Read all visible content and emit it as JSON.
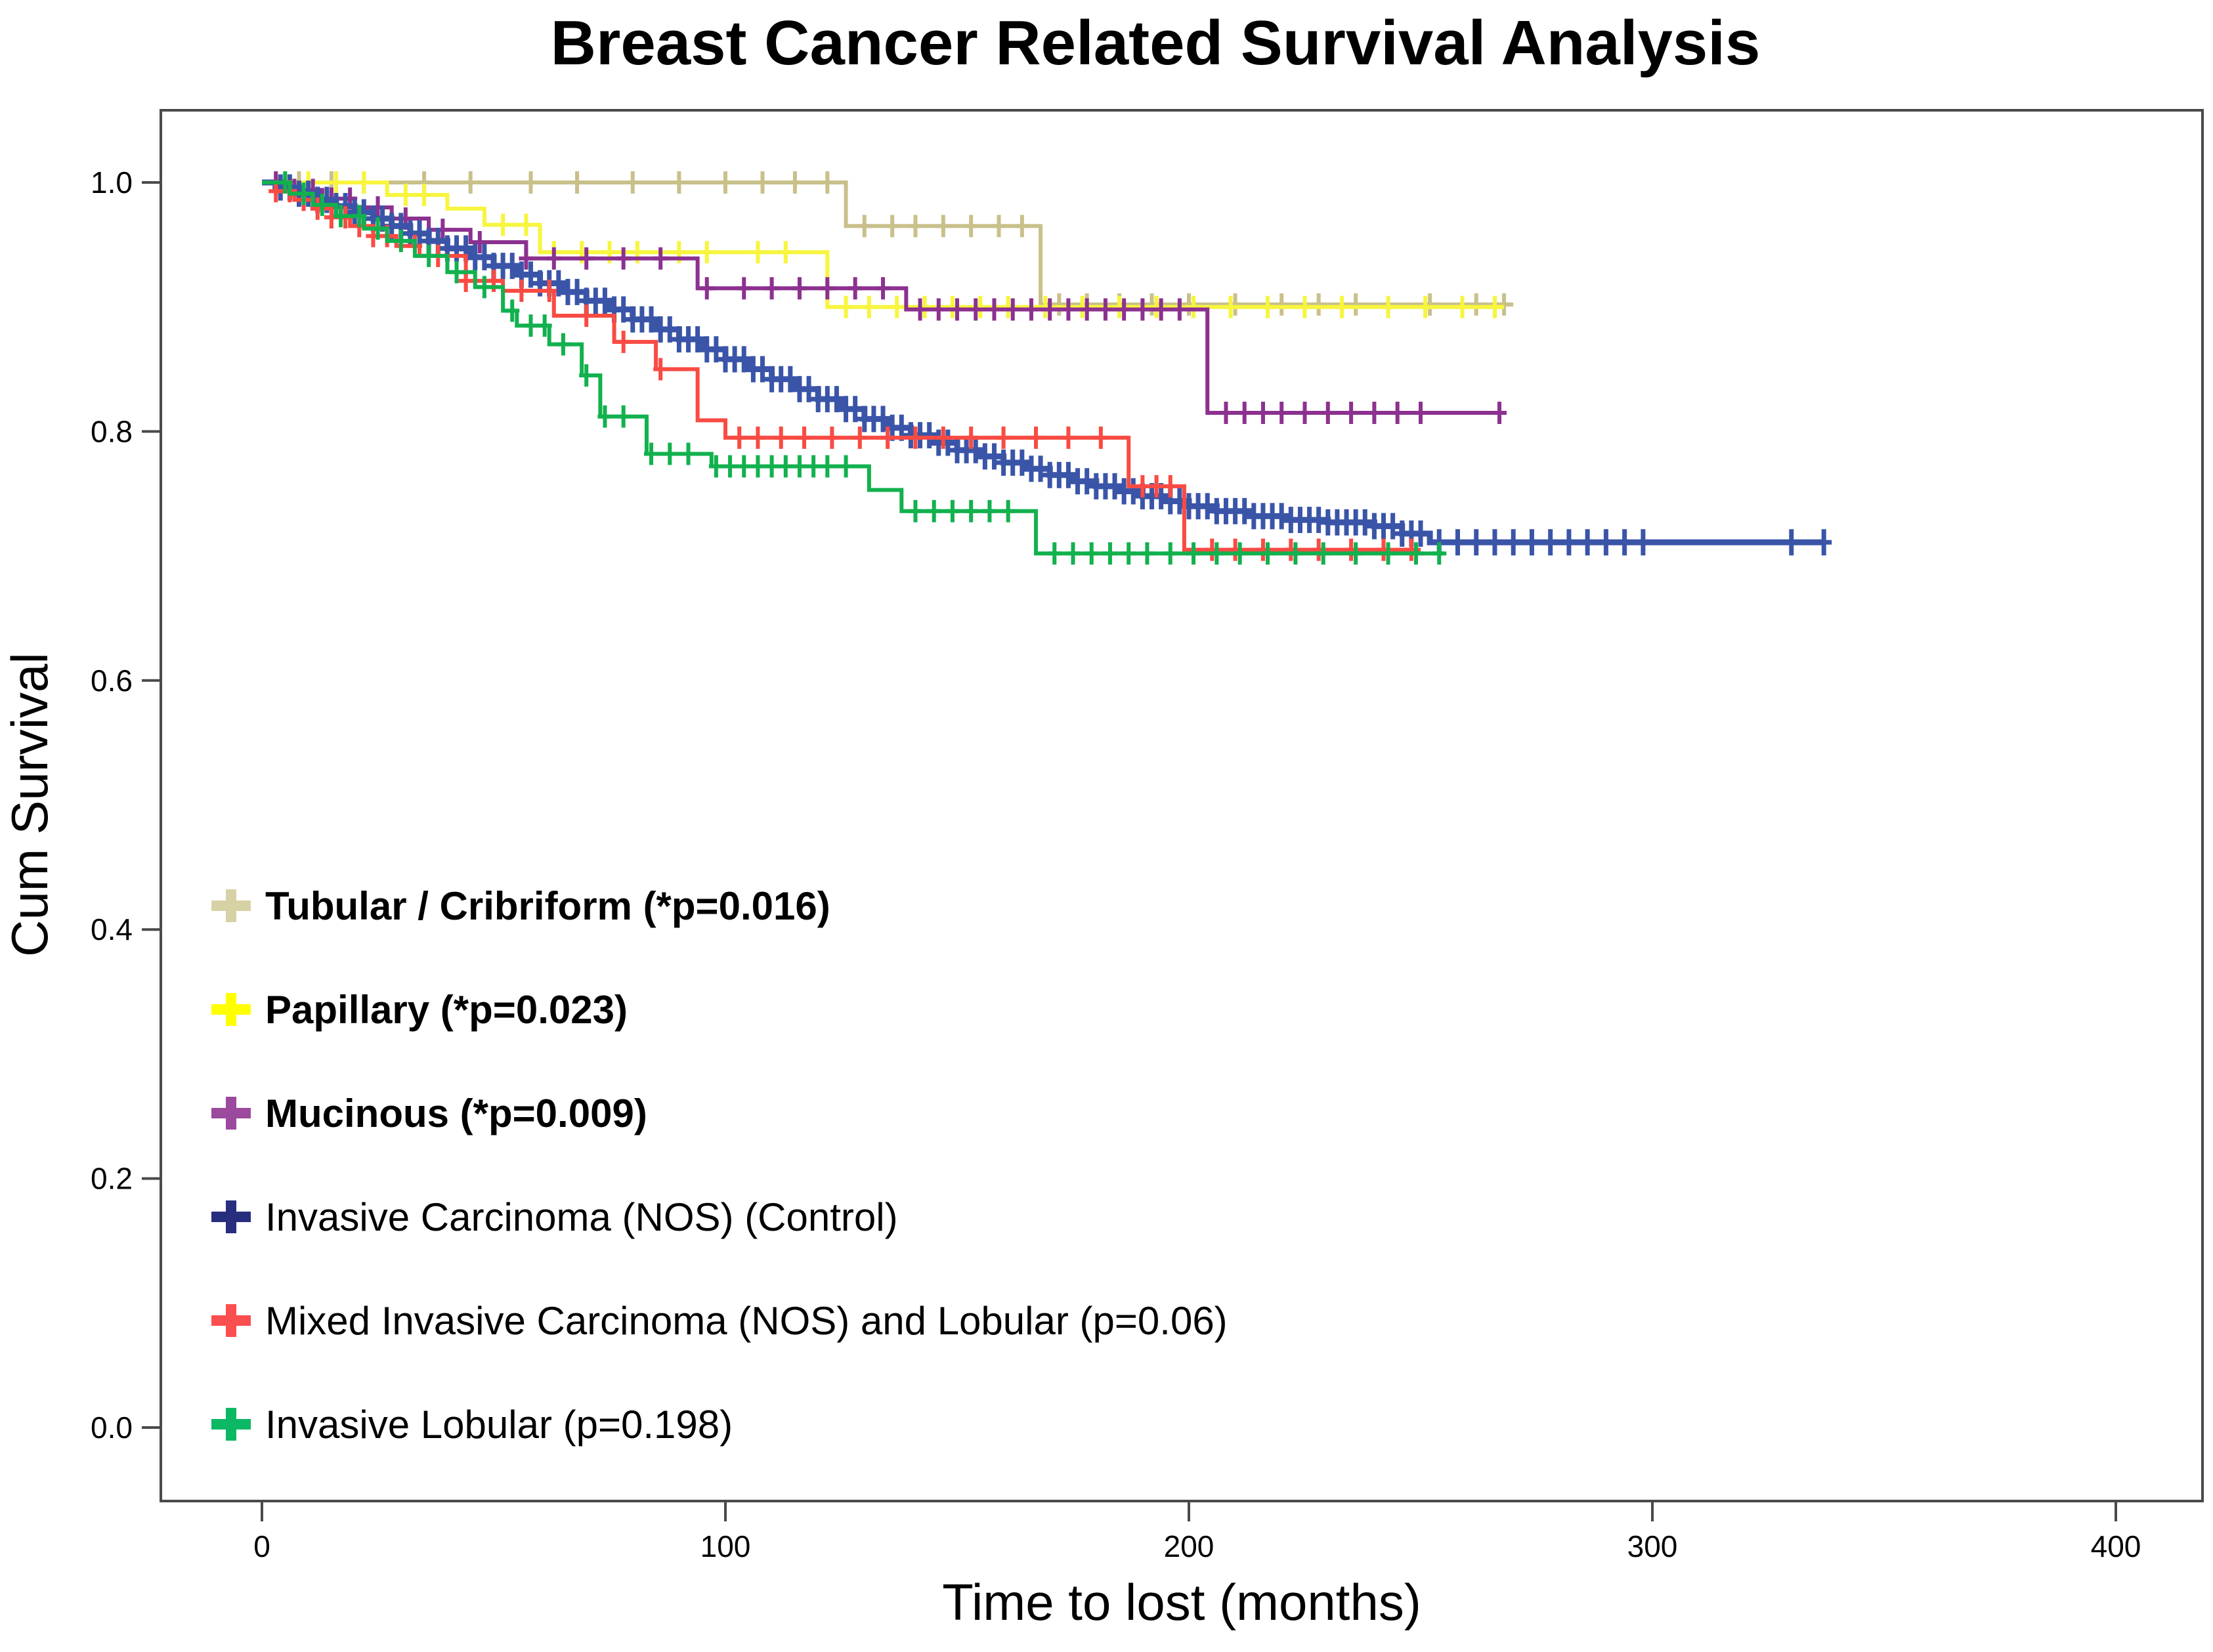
{
  "title": "Breast Cancer Related Survival Analysis",
  "axes": {
    "y": {
      "label": "Cum Survival",
      "ticks": [
        {
          "value": 1.0,
          "label": "1.0"
        },
        {
          "value": 0.8,
          "label": "0.8"
        },
        {
          "value": 0.6,
          "label": "0.6"
        },
        {
          "value": 0.4,
          "label": "0.4"
        },
        {
          "value": 0.2,
          "label": "0.2"
        },
        {
          "value": 0.0,
          "label": "0.0"
        }
      ]
    },
    "x": {
      "label": "Time to lost (months)",
      "ticks": [
        {
          "value": 0,
          "label": "0"
        },
        {
          "value": 100,
          "label": "100"
        },
        {
          "value": 200,
          "label": "200"
        },
        {
          "value": 300,
          "label": "300"
        },
        {
          "value": 400,
          "label": "400"
        }
      ]
    }
  },
  "chart_data": {
    "type": "line",
    "subtype": "kaplan-meier-step",
    "title": "Breast Cancer Related Survival Analysis",
    "xlabel": "Time to lost (months)",
    "ylabel": "Cum Survival",
    "xlim": [
      -21.8,
      418.7
    ],
    "ylim": [
      -0.059,
      1.058
    ],
    "grid": false,
    "legend_position": "inside-lower-left",
    "series": [
      {
        "id": "tubular_cribriform",
        "label": "Tubular / Cribriform (*p=0.016)",
        "p_value": "*p=0.016",
        "color": "#c9c08a",
        "marker_color": "#d7d1a6",
        "steps": [
          [
            0,
            1.0
          ],
          [
            126,
            0.965
          ],
          [
            168,
            0.902
          ]
        ],
        "end_time": 270,
        "censor_times": [
          8,
          15,
          22,
          35,
          45,
          58,
          68,
          80,
          90,
          100,
          108,
          115,
          122,
          130,
          136,
          141,
          147,
          153,
          159,
          164,
          172,
          178,
          185,
          192,
          200,
          210,
          220,
          228,
          236,
          252,
          262,
          268
        ]
      },
      {
        "id": "papillary",
        "label": "Papillary (*p=0.023)",
        "p_value": "*p=0.023",
        "color": "#f7f53e",
        "marker_color": "#ffff00",
        "steps": [
          [
            0,
            1.0
          ],
          [
            27,
            0.99
          ],
          [
            40,
            0.979
          ],
          [
            48,
            0.966
          ],
          [
            60,
            0.944
          ],
          [
            122,
            0.9
          ]
        ],
        "end_time": 268,
        "censor_times": [
          5,
          10,
          16,
          22,
          31,
          35,
          52,
          57,
          63,
          69,
          75,
          81,
          90,
          96,
          107,
          113,
          126,
          131,
          137,
          143,
          149,
          155,
          161,
          169,
          177,
          185,
          193,
          201,
          209,
          217,
          225,
          233,
          243,
          251,
          259,
          266
        ]
      },
      {
        "id": "mucinous",
        "label": "Mucinous (*p=0.009)",
        "p_value": "*p=0.009",
        "color": "#8c3190",
        "marker_color": "#9c4a9e",
        "steps": [
          [
            0,
            1.0
          ],
          [
            6,
            0.994
          ],
          [
            13,
            0.987
          ],
          [
            20,
            0.98
          ],
          [
            28,
            0.971
          ],
          [
            36,
            0.962
          ],
          [
            45,
            0.952
          ],
          [
            57,
            0.939
          ],
          [
            94,
            0.915
          ],
          [
            139,
            0.898
          ],
          [
            204,
            0.815
          ]
        ],
        "end_time": 267,
        "censor_times": [
          3,
          7,
          11,
          15,
          19,
          25,
          31,
          39,
          47,
          57,
          63,
          70,
          78,
          86,
          96,
          104,
          110,
          116,
          122,
          128,
          134,
          142,
          146,
          150,
          154,
          158,
          162,
          166,
          170,
          174,
          178,
          182,
          186,
          190,
          194,
          198,
          208,
          212,
          216,
          220,
          225,
          230,
          235,
          240,
          245,
          250,
          267
        ]
      },
      {
        "id": "invasive_carcinoma_nos_control",
        "label": "Invasive Carcinoma (NOS) (Control)",
        "p_value": null,
        "color": "#3a55a8",
        "marker_color": "#282e7e",
        "steps": [
          [
            0,
            1.0
          ],
          [
            4,
            0.996
          ],
          [
            8,
            0.991
          ],
          [
            12,
            0.986
          ],
          [
            16,
            0.981
          ],
          [
            20,
            0.976
          ],
          [
            24,
            0.971
          ],
          [
            28,
            0.965
          ],
          [
            32,
            0.959
          ],
          [
            36,
            0.953
          ],
          [
            40,
            0.947
          ],
          [
            45,
            0.94
          ],
          [
            50,
            0.933
          ],
          [
            55,
            0.926
          ],
          [
            60,
            0.919
          ],
          [
            65,
            0.912
          ],
          [
            70,
            0.905
          ],
          [
            75,
            0.898
          ],
          [
            80,
            0.89
          ],
          [
            85,
            0.882
          ],
          [
            90,
            0.874
          ],
          [
            95,
            0.866
          ],
          [
            100,
            0.858
          ],
          [
            105,
            0.85
          ],
          [
            110,
            0.842
          ],
          [
            115,
            0.834
          ],
          [
            120,
            0.826
          ],
          [
            125,
            0.818
          ],
          [
            130,
            0.81
          ],
          [
            135,
            0.803
          ],
          [
            140,
            0.797
          ],
          [
            145,
            0.791
          ],
          [
            150,
            0.785
          ],
          [
            155,
            0.78
          ],
          [
            160,
            0.775
          ],
          [
            165,
            0.77
          ],
          [
            170,
            0.765
          ],
          [
            175,
            0.76
          ],
          [
            180,
            0.756
          ],
          [
            185,
            0.752
          ],
          [
            190,
            0.748
          ],
          [
            195,
            0.744
          ],
          [
            200,
            0.74
          ],
          [
            206,
            0.736
          ],
          [
            213,
            0.732
          ],
          [
            221,
            0.729
          ],
          [
            230,
            0.727
          ],
          [
            240,
            0.724
          ],
          [
            246,
            0.718
          ],
          [
            252,
            0.711
          ]
        ],
        "end_time": 337,
        "censor_times": [
          4,
          6,
          8,
          10,
          12,
          14,
          16,
          18,
          20,
          22,
          24,
          26,
          28,
          30,
          32,
          34,
          36,
          38,
          40,
          42,
          44,
          46,
          48,
          50,
          52,
          54,
          56,
          58,
          60,
          62,
          64,
          66,
          68,
          70,
          72,
          74,
          76,
          78,
          80,
          82,
          84,
          86,
          88,
          90,
          92,
          94,
          96,
          98,
          100,
          102,
          104,
          106,
          108,
          110,
          112,
          114,
          116,
          118,
          120,
          122,
          124,
          126,
          128,
          130,
          132,
          134,
          136,
          138,
          140,
          142,
          144,
          146,
          148,
          150,
          152,
          154,
          156,
          158,
          160,
          162,
          164,
          166,
          168,
          170,
          172,
          174,
          176,
          178,
          180,
          182,
          184,
          186,
          188,
          190,
          192,
          194,
          196,
          198,
          200,
          202,
          204,
          206,
          208,
          210,
          212,
          214,
          216,
          218,
          220,
          222,
          224,
          226,
          228,
          230,
          232,
          234,
          236,
          238,
          240,
          242,
          244,
          246,
          248,
          250,
          254,
          258,
          262,
          266,
          270,
          274,
          278,
          282,
          286,
          290,
          294,
          298,
          330,
          337
        ]
      },
      {
        "id": "mixed_invasive_nos_lobular",
        "label": "Mixed Invasive Carcinoma (NOS) and Lobular (p=0.06)",
        "p_value": "p=0.06",
        "color": "#f94b43",
        "marker_color": "#fb4f4f",
        "steps": [
          [
            0,
            1.0
          ],
          [
            3,
            0.993
          ],
          [
            7,
            0.986
          ],
          [
            11,
            0.979
          ],
          [
            15,
            0.972
          ],
          [
            19,
            0.965
          ],
          [
            24,
            0.957
          ],
          [
            29,
            0.949
          ],
          [
            34,
            0.941
          ],
          [
            44,
            0.921
          ],
          [
            52,
            0.913
          ],
          [
            63,
            0.893
          ],
          [
            76,
            0.872
          ],
          [
            85,
            0.85
          ],
          [
            94,
            0.809
          ],
          [
            100,
            0.795
          ],
          [
            187,
            0.756
          ],
          [
            199,
            0.705
          ]
        ],
        "end_time": 250,
        "censor_times": [
          3,
          6,
          9,
          12,
          15,
          18,
          21,
          24,
          27,
          33,
          38,
          44,
          50,
          56,
          62,
          70,
          78,
          86,
          103,
          107,
          112,
          117,
          123,
          129,
          135,
          141,
          147,
          153,
          160,
          167,
          174,
          181,
          190,
          193,
          196,
          205,
          210,
          216,
          222,
          228,
          235,
          242,
          248
        ]
      },
      {
        "id": "invasive_lobular",
        "label": "Invasive Lobular (p=0.198)",
        "p_value": "p=0.198",
        "color": "#12b14e",
        "marker_color": "#0cb863",
        "steps": [
          [
            0,
            1.0
          ],
          [
            6,
            0.991
          ],
          [
            11,
            0.982
          ],
          [
            16,
            0.973
          ],
          [
            22,
            0.963
          ],
          [
            27,
            0.953
          ],
          [
            33,
            0.941
          ],
          [
            40,
            0.928
          ],
          [
            46,
            0.916
          ],
          [
            52,
            0.897
          ],
          [
            55,
            0.885
          ],
          [
            62,
            0.87
          ],
          [
            69,
            0.845
          ],
          [
            73,
            0.812
          ],
          [
            83,
            0.782
          ],
          [
            97,
            0.772
          ],
          [
            131,
            0.753
          ],
          [
            138,
            0.736
          ],
          [
            167,
            0.702
          ]
        ],
        "end_time": 255,
        "censor_times": [
          5,
          9,
          13,
          17,
          21,
          25,
          30,
          36,
          42,
          48,
          54,
          58,
          61,
          65,
          70,
          74,
          78,
          84,
          88,
          92,
          98,
          101,
          104,
          107,
          110,
          113,
          116,
          119,
          122,
          126,
          141,
          145,
          149,
          153,
          157,
          161,
          171,
          175,
          179,
          183,
          187,
          191,
          196,
          201,
          206,
          211,
          217,
          223,
          229,
          236,
          243,
          249,
          254
        ]
      }
    ]
  }
}
